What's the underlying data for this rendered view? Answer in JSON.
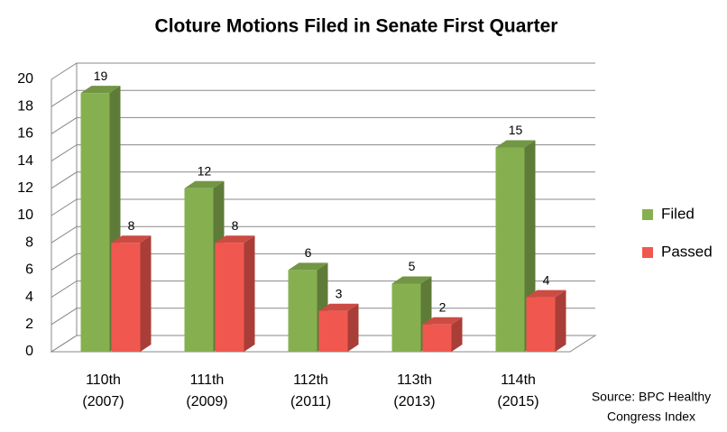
{
  "chart_data": {
    "type": "bar3d",
    "title": "Cloture Motions Filed in Senate First Quarter",
    "categories": [
      [
        "110th",
        "(2007)"
      ],
      [
        "111th",
        "(2009)"
      ],
      [
        "112th",
        "(2011)"
      ],
      [
        "113th",
        "(2013)"
      ],
      [
        "114th",
        "(2015)"
      ]
    ],
    "series": [
      {
        "name": "Filed",
        "color": "#86b050",
        "values": [
          19,
          12,
          6,
          5,
          15
        ]
      },
      {
        "name": "Passed",
        "color": "#f0584f",
        "values": [
          8,
          8,
          3,
          2,
          4
        ]
      }
    ],
    "ylim": [
      0,
      20
    ],
    "yticks": [
      0,
      2,
      4,
      6,
      8,
      10,
      12,
      14,
      16,
      18,
      20
    ],
    "grid": true,
    "legend": "right",
    "source": [
      "Source:  BPC Healthy",
      "Congress Index"
    ]
  }
}
